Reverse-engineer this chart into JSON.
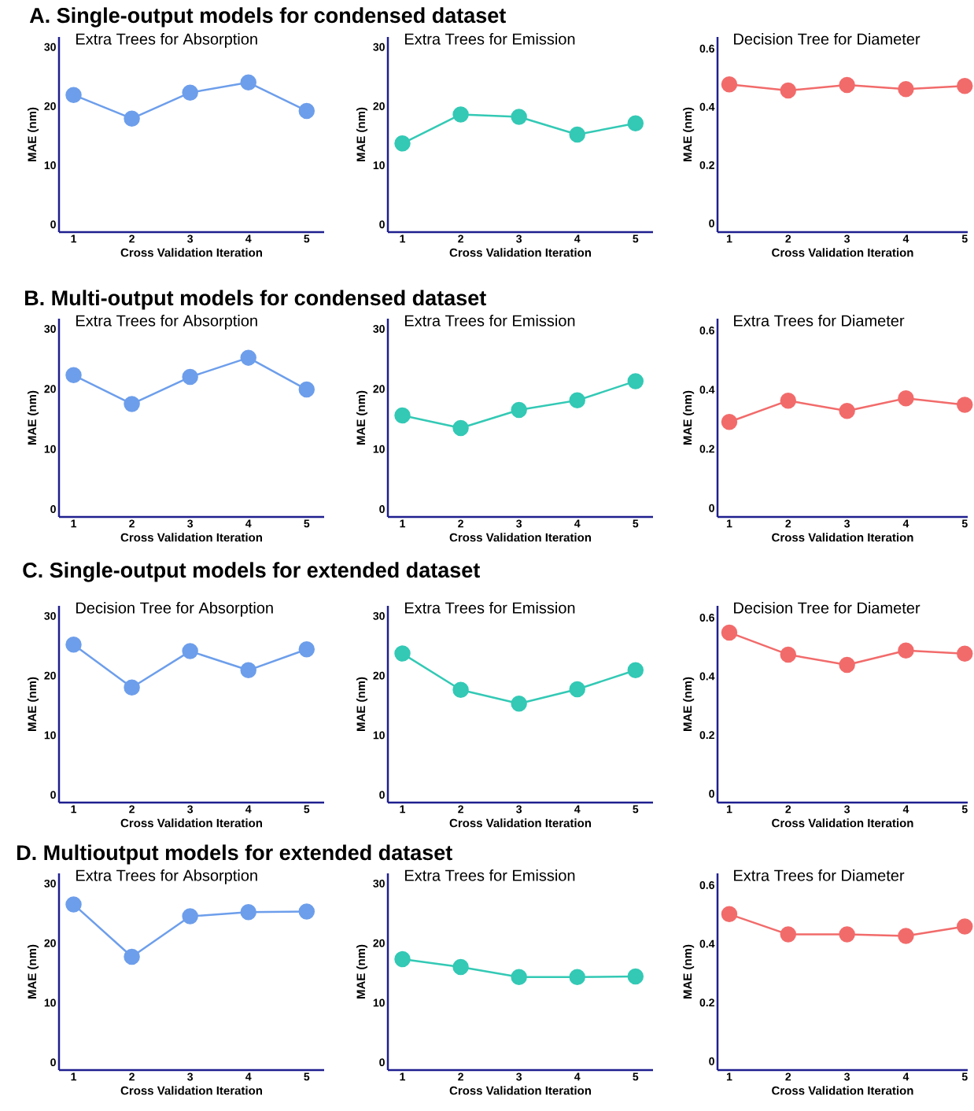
{
  "chart_data": [
    {
      "type": "line",
      "title": "Extra Trees for Absorption",
      "xlabel": "Cross Validation Iteration",
      "ylabel": "MAE (nm)",
      "annotations": [
        "A. Single-output models for condensed dataset"
      ],
      "x": [
        1,
        2,
        3,
        4,
        5
      ],
      "values": [
        21.9,
        17.9,
        22.3,
        24.0,
        19.2
      ],
      "color": "#6d9eeb",
      "marker": "circle",
      "line_style": "solid",
      "xlim": [
        0.75,
        5.3
      ],
      "ylim": [
        -1.3,
        31.7
      ],
      "xticks": [
        1,
        2,
        3,
        4,
        5
      ],
      "yticks": [
        0,
        10,
        20,
        30
      ]
    },
    {
      "type": "line",
      "title": "Extra Trees for Emission",
      "xlabel": "Cross Validation Iteration",
      "ylabel": "MAE (nm)",
      "x": [
        1,
        2,
        3,
        4,
        5
      ],
      "values": [
        13.7,
        18.6,
        18.2,
        15.2,
        17.1
      ],
      "color": "#33c9b5",
      "marker": "circle",
      "line_style": "solid",
      "xlim": [
        0.75,
        5.3
      ],
      "ylim": [
        -1.3,
        31.7
      ],
      "xticks": [
        1,
        2,
        3,
        4,
        5
      ],
      "yticks": [
        0,
        10,
        20,
        30
      ]
    },
    {
      "type": "line",
      "title": "Decision Tree for Diameter",
      "xlabel": "Cross Validation Iteration",
      "ylabel": "MAE (nm)",
      "x": [
        1,
        2,
        3,
        4,
        5
      ],
      "values": [
        0.477,
        0.456,
        0.475,
        0.461,
        0.472
      ],
      "color": "#f26b6b",
      "marker": "circle",
      "line_style": "solid",
      "xlim": [
        0.8,
        5.05
      ],
      "ylim": [
        -0.03,
        0.64
      ],
      "xticks": [
        1,
        2,
        3,
        4,
        5
      ],
      "yticks": [
        0,
        0.2,
        0.4,
        0.6
      ]
    },
    {
      "type": "line",
      "title": "Extra Trees for Absorption",
      "xlabel": "Cross Validation Iteration",
      "ylabel": "MAE (nm)",
      "annotations": [
        "B. Multi-output models for condensed dataset"
      ],
      "x": [
        1,
        2,
        3,
        4,
        5
      ],
      "values": [
        22.3,
        17.5,
        22.0,
        25.2,
        19.9
      ],
      "color": "#6d9eeb",
      "marker": "circle",
      "line_style": "solid",
      "xlim": [
        0.75,
        5.3
      ],
      "ylim": [
        -1.3,
        31.7
      ],
      "xticks": [
        1,
        2,
        3,
        4,
        5
      ],
      "yticks": [
        0,
        10,
        20,
        30
      ]
    },
    {
      "type": "line",
      "title": "Extra Trees for Emission",
      "xlabel": "Cross Validation Iteration",
      "ylabel": "MAE (nm)",
      "x": [
        1,
        2,
        3,
        4,
        5
      ],
      "values": [
        15.6,
        13.5,
        16.5,
        18.1,
        21.3
      ],
      "color": "#33c9b5",
      "marker": "circle",
      "line_style": "solid",
      "xlim": [
        0.75,
        5.3
      ],
      "ylim": [
        -1.3,
        31.7
      ],
      "xticks": [
        1,
        2,
        3,
        4,
        5
      ],
      "yticks": [
        0,
        10,
        20,
        30
      ]
    },
    {
      "type": "line",
      "title": "Extra Trees for Diameter",
      "xlabel": "Cross Validation Iteration",
      "ylabel": "MAE (nm)",
      "x": [
        1,
        2,
        3,
        4,
        5
      ],
      "values": [
        0.291,
        0.363,
        0.328,
        0.371,
        0.349
      ],
      "color": "#f26b6b",
      "marker": "circle",
      "line_style": "solid",
      "xlim": [
        0.8,
        5.05
      ],
      "ylim": [
        -0.03,
        0.64
      ],
      "xticks": [
        1,
        2,
        3,
        4,
        5
      ],
      "yticks": [
        0,
        0.2,
        0.4,
        0.6
      ]
    },
    {
      "type": "line",
      "title": "Decision Tree for Absorption",
      "xlabel": "Cross Validation Iteration",
      "ylabel": "MAE (nm)",
      "annotations": [
        "C. Single-output models for extended dataset"
      ],
      "x": [
        1,
        2,
        3,
        4,
        5
      ],
      "values": [
        25.2,
        18.0,
        24.1,
        20.9,
        24.4
      ],
      "color": "#6d9eeb",
      "marker": "circle",
      "line_style": "solid",
      "xlim": [
        0.75,
        5.3
      ],
      "ylim": [
        -1.3,
        31.7
      ],
      "xticks": [
        1,
        2,
        3,
        4,
        5
      ],
      "yticks": [
        0,
        10,
        20,
        30
      ]
    },
    {
      "type": "line",
      "title": "Extra Trees for Emission",
      "xlabel": "Cross Validation Iteration",
      "ylabel": "MAE (nm)",
      "x": [
        1,
        2,
        3,
        4,
        5
      ],
      "values": [
        23.7,
        17.6,
        15.3,
        17.7,
        20.9
      ],
      "color": "#33c9b5",
      "marker": "circle",
      "line_style": "solid",
      "xlim": [
        0.75,
        5.3
      ],
      "ylim": [
        -1.3,
        31.7
      ],
      "xticks": [
        1,
        2,
        3,
        4,
        5
      ],
      "yticks": [
        0,
        10,
        20,
        30
      ]
    },
    {
      "type": "line",
      "title": "Decision Tree for Diameter",
      "xlabel": "Cross Validation Iteration",
      "ylabel": "MAE (nm)",
      "x": [
        1,
        2,
        3,
        4,
        5
      ],
      "values": [
        0.549,
        0.474,
        0.439,
        0.488,
        0.477
      ],
      "color": "#f26b6b",
      "marker": "circle",
      "line_style": "solid",
      "xlim": [
        0.8,
        5.05
      ],
      "ylim": [
        -0.03,
        0.64
      ],
      "xticks": [
        1,
        2,
        3,
        4,
        5
      ],
      "yticks": [
        0,
        0.2,
        0.4,
        0.6
      ]
    },
    {
      "type": "line",
      "title": "Extra Trees for Absorption",
      "xlabel": "Cross Validation Iteration",
      "ylabel": "MAE (nm)",
      "annotations": [
        "D. Multioutput models for extended dataset"
      ],
      "x": [
        1,
        2,
        3,
        4,
        5
      ],
      "values": [
        26.5,
        17.7,
        24.5,
        25.2,
        25.3
      ],
      "color": "#6d9eeb",
      "marker": "circle",
      "line_style": "solid",
      "xlim": [
        0.75,
        5.3
      ],
      "ylim": [
        -1.3,
        31.7
      ],
      "xticks": [
        1,
        2,
        3,
        4,
        5
      ],
      "yticks": [
        0,
        10,
        20,
        30
      ]
    },
    {
      "type": "line",
      "title": "Extra Trees for Emission",
      "xlabel": "Cross Validation Iteration",
      "ylabel": "MAE (nm)",
      "x": [
        1,
        2,
        3,
        4,
        5
      ],
      "values": [
        17.3,
        16.0,
        14.3,
        14.3,
        14.4
      ],
      "color": "#33c9b5",
      "marker": "circle",
      "line_style": "solid",
      "xlim": [
        0.75,
        5.3
      ],
      "ylim": [
        -1.3,
        31.7
      ],
      "xticks": [
        1,
        2,
        3,
        4,
        5
      ],
      "yticks": [
        0,
        10,
        20,
        30
      ]
    },
    {
      "type": "line",
      "title": "Extra Trees for Diameter",
      "xlabel": "Cross Validation Iteration",
      "ylabel": "MAE (nm)",
      "x": [
        1,
        2,
        3,
        4,
        5
      ],
      "values": [
        0.501,
        0.432,
        0.432,
        0.427,
        0.459
      ],
      "color": "#f26b6b",
      "marker": "circle",
      "line_style": "solid",
      "xlim": [
        0.8,
        5.05
      ],
      "ylim": [
        -0.03,
        0.64
      ],
      "xticks": [
        1,
        2,
        3,
        4,
        5
      ],
      "yticks": [
        0,
        0.2,
        0.4,
        0.6
      ]
    }
  ]
}
